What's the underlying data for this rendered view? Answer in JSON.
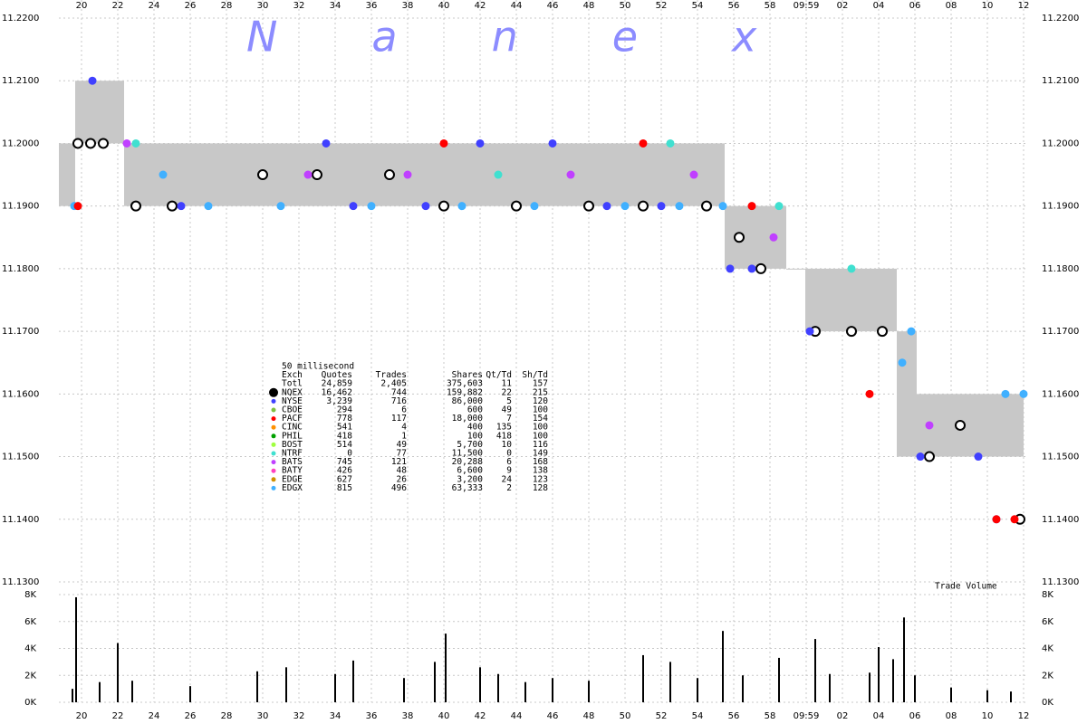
{
  "chart_data": {
    "type": "scatter",
    "watermark": "Nanex",
    "xlim": [
      18.75,
      72.25
    ],
    "xticks": [
      20,
      22,
      24,
      26,
      28,
      30,
      32,
      34,
      36,
      38,
      40,
      42,
      44,
      46,
      48,
      50,
      52,
      54,
      56,
      58,
      {
        "value": 60,
        "label": "09:59"
      },
      {
        "value": 62,
        "label": "02"
      },
      {
        "value": 64,
        "label": "04"
      },
      {
        "value": 66,
        "label": "06"
      },
      {
        "value": 68,
        "label": "08"
      },
      {
        "value": 70,
        "label": "10"
      },
      {
        "value": 72,
        "label": "12"
      }
    ],
    "ylim": [
      11.13,
      11.22
    ],
    "yticks": [
      {
        "value": 11.13,
        "label": "11.1300"
      },
      {
        "value": 11.14,
        "label": "11.1400"
      },
      {
        "value": 11.15,
        "label": "11.1500"
      },
      {
        "value": 11.16,
        "label": "11.1600"
      },
      {
        "value": 11.17,
        "label": "11.1700"
      },
      {
        "value": 11.18,
        "label": "11.1800"
      },
      {
        "value": 11.19,
        "label": "11.1900"
      },
      {
        "value": 11.2,
        "label": "11.2000"
      },
      {
        "value": 11.21,
        "label": "11.2100"
      },
      {
        "value": 11.22,
        "label": "11.2200"
      }
    ],
    "grid": true,
    "nbbo": {
      "color": "#c8c8c8",
      "x": [
        18.75,
        19.65,
        22.35,
        55.5,
        58.9,
        59.95,
        65,
        66.1,
        72
      ],
      "bid": [
        11.19,
        11.2,
        11.19,
        11.18,
        11.18,
        11.17,
        11.15,
        11.15
      ],
      "ask": [
        11.2,
        11.21,
        11.2,
        11.19,
        11.18,
        11.18,
        11.17,
        11.16
      ]
    },
    "series": [
      {
        "name": "NQEX",
        "color": "#000000",
        "x": [
          19.8,
          20.5,
          21.2,
          23,
          25,
          30,
          33,
          37,
          40,
          44,
          48,
          51,
          54.5,
          56.3,
          57.5,
          60.5,
          62.5,
          64.2,
          66.8,
          68.5,
          71.8
        ],
        "values": [
          11.2,
          11.2,
          11.2,
          11.19,
          11.19,
          11.195,
          11.195,
          11.195,
          11.19,
          11.19,
          11.19,
          11.19,
          11.19,
          11.185,
          11.18,
          11.17,
          11.17,
          11.17,
          11.15,
          11.155,
          11.14
        ]
      },
      {
        "name": "NYSE",
        "color": "#4040ff",
        "x": [
          20.6,
          25.5,
          33.5,
          35,
          39,
          42,
          46,
          49,
          52,
          55.8,
          57,
          60.2,
          66.3,
          69.5,
          70.5
        ],
        "values": [
          11.21,
          11.19,
          11.2,
          11.19,
          11.19,
          11.2,
          11.2,
          11.19,
          11.19,
          11.18,
          11.18,
          11.17,
          11.15,
          11.15,
          11.14
        ]
      },
      {
        "name": "EDGX",
        "color": "#40b0ff",
        "x": [
          19.6,
          24.5,
          27,
          31,
          36,
          41,
          45,
          50,
          53,
          55.4,
          65.3,
          65.8,
          71,
          72
        ],
        "values": [
          11.19,
          11.195,
          11.19,
          11.19,
          11.19,
          11.19,
          11.19,
          11.19,
          11.19,
          11.19,
          11.165,
          11.17,
          11.16,
          11.16
        ]
      },
      {
        "name": "BATS",
        "color": "#c040ff",
        "x": [
          22.5,
          32.5,
          38,
          47,
          53.8,
          58.2,
          66.8
        ],
        "values": [
          11.2,
          11.195,
          11.195,
          11.195,
          11.195,
          11.185,
          11.155
        ]
      },
      {
        "name": "PACF",
        "color": "#ff0000",
        "x": [
          19.8,
          40,
          51,
          57,
          63.5,
          70.5,
          71.5
        ],
        "values": [
          11.19,
          11.2,
          11.2,
          11.19,
          11.16,
          11.14,
          11.14
        ]
      },
      {
        "name": "NTRF",
        "color": "#40e0d0",
        "x": [
          23,
          43,
          52.5,
          58.5,
          62.5
        ],
        "values": [
          11.2,
          11.195,
          11.2,
          11.19,
          11.18
        ]
      }
    ],
    "volume": {
      "label": "Trade Volume",
      "color": "#000000",
      "ylim": [
        0,
        8000
      ],
      "yticks": [
        {
          "value": 0,
          "label": "0K"
        },
        {
          "value": 2000,
          "label": "2K"
        },
        {
          "value": 4000,
          "label": "4K"
        },
        {
          "value": 6000,
          "label": "6K"
        },
        {
          "value": 8000,
          "label": "8K"
        }
      ],
      "x": [
        19.5,
        19.7,
        21,
        22,
        22.8,
        26,
        29.7,
        31.3,
        34,
        35,
        37.8,
        39.5,
        40.1,
        42,
        43,
        44.5,
        46,
        48,
        51,
        52.5,
        54,
        55.4,
        56.5,
        58.5,
        60.5,
        61.3,
        63.5,
        64,
        64.8,
        65.4,
        66,
        68,
        70,
        71.3
      ],
      "values": [
        1000,
        7800,
        1500,
        4400,
        1600,
        1200,
        2300,
        2600,
        2100,
        3100,
        1800,
        3000,
        5100,
        2600,
        2100,
        1500,
        1800,
        1600,
        3500,
        3000,
        1800,
        5300,
        2000,
        3300,
        4700,
        2100,
        2200,
        4100,
        3200,
        6300,
        2000,
        1100,
        900,
        800
      ]
    },
    "table": {
      "title": "50 millisecond",
      "columns": [
        "Exch",
        "Quotes",
        "Trades",
        "Shares",
        "Qt/Td",
        "Sh/Td"
      ],
      "rows": [
        {
          "exch": "Totl",
          "cells": [
            "24,859",
            "2,405",
            "375,603",
            "11",
            "157"
          ]
        },
        {
          "exch": "NQEX",
          "color": "#000000",
          "cells": [
            "16,462",
            "744",
            "159,882",
            "22",
            "215"
          ]
        },
        {
          "exch": "NYSE",
          "color": "#4040ff",
          "cells": [
            "3,239",
            "716",
            "86,000",
            "5",
            "120"
          ]
        },
        {
          "exch": "CBOE",
          "color": "#80c040",
          "cells": [
            "294",
            "6",
            "600",
            "49",
            "100"
          ]
        },
        {
          "exch": "PACF",
          "color": "#ff0000",
          "cells": [
            "778",
            "117",
            "18,000",
            "7",
            "154"
          ]
        },
        {
          "exch": "CINC",
          "color": "#ff9000",
          "cells": [
            "541",
            "4",
            "400",
            "135",
            "100"
          ]
        },
        {
          "exch": "PHIL",
          "color": "#00a000",
          "cells": [
            "418",
            "1",
            "100",
            "418",
            "100"
          ]
        },
        {
          "exch": "BOST",
          "color": "#a0ff40",
          "cells": [
            "514",
            "49",
            "5,700",
            "10",
            "116"
          ]
        },
        {
          "exch": "NTRF",
          "color": "#40e0d0",
          "cells": [
            "0",
            "77",
            "11,500",
            "0",
            "149"
          ]
        },
        {
          "exch": "BATS",
          "color": "#c040ff",
          "cells": [
            "745",
            "121",
            "20,288",
            "6",
            "168"
          ]
        },
        {
          "exch": "BATY",
          "color": "#ff40c0",
          "cells": [
            "426",
            "48",
            "6,600",
            "9",
            "138"
          ]
        },
        {
          "exch": "EDGE",
          "color": "#d09000",
          "cells": [
            "627",
            "26",
            "3,200",
            "24",
            "123"
          ]
        },
        {
          "exch": "EDGX",
          "color": "#40b0ff",
          "cells": [
            "815",
            "496",
            "63,333",
            "2",
            "128"
          ]
        }
      ]
    }
  }
}
